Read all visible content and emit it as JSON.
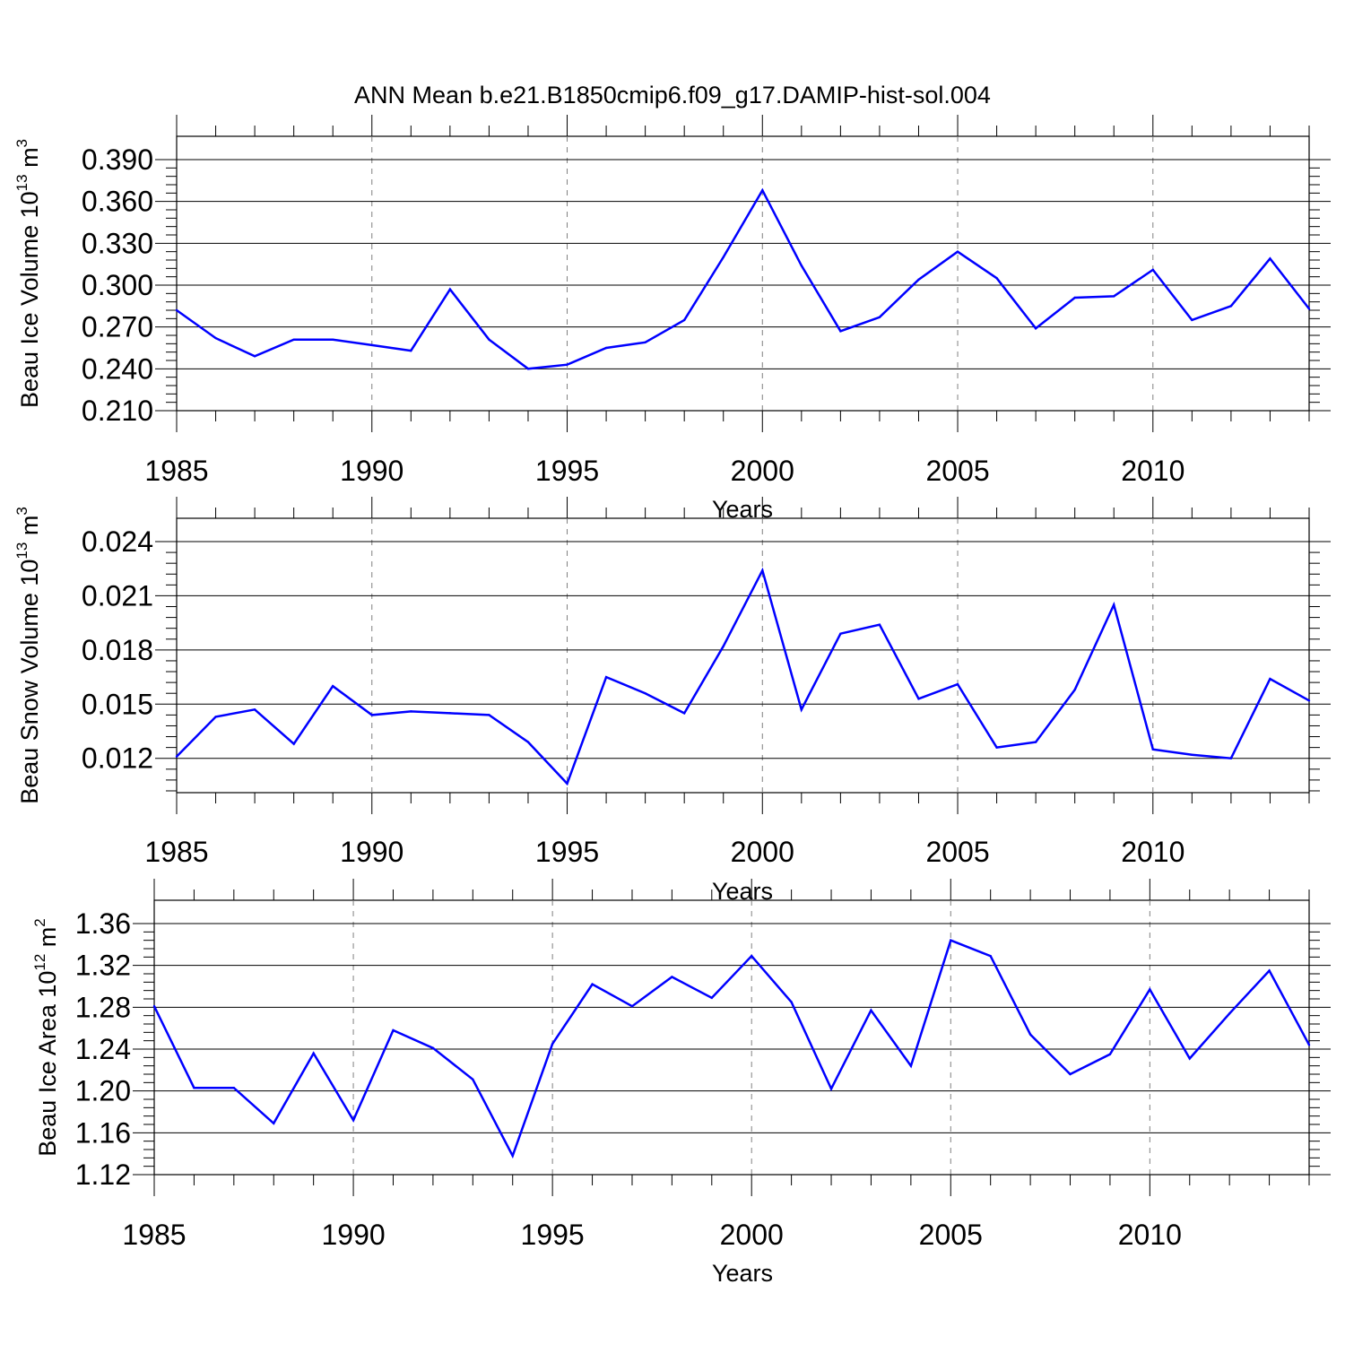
{
  "title": "ANN Mean b.e21.B1850cmip6.f09_g17.DAMIP-hist-sol.004",
  "colors": {
    "series": "#0000ff",
    "axis": "#000000",
    "grid": "#808080",
    "background": "#ffffff"
  },
  "chart_data": [
    {
      "type": "line",
      "ylabel": {
        "text": "Beau Ice Volume 10",
        "exp": "13",
        "unit_text": " m",
        "unit_exp": "3"
      },
      "xlabel": "Years",
      "xlim": [
        1985,
        2014
      ],
      "ylim": [
        0.21,
        0.392
      ],
      "yticks": [
        "0.390",
        "0.360",
        "0.330",
        "0.300",
        "0.270",
        "0.240",
        "0.210"
      ],
      "ytick_values": [
        0.39,
        0.36,
        0.33,
        0.3,
        0.27,
        0.24,
        0.21
      ],
      "xticks": [
        "1985",
        "1990",
        "1995",
        "2000",
        "2005",
        "2010"
      ],
      "xtick_values": [
        1985,
        1990,
        1995,
        2000,
        2005,
        2010
      ],
      "grid": "vertical dashed",
      "x": [
        1985,
        1986,
        1987,
        1988,
        1989,
        1990,
        1991,
        1992,
        1993,
        1994,
        1995,
        1996,
        1997,
        1998,
        1999,
        2000,
        2001,
        2002,
        2003,
        2004,
        2005,
        2006,
        2007,
        2008,
        2009,
        2010,
        2011,
        2012,
        2013,
        2014
      ],
      "values": [
        0.282,
        0.262,
        0.249,
        0.261,
        0.261,
        0.257,
        0.253,
        0.297,
        0.261,
        0.24,
        0.243,
        0.255,
        0.259,
        0.275,
        0.32,
        0.368,
        0.314,
        0.267,
        0.277,
        0.304,
        0.324,
        0.305,
        0.269,
        0.291,
        0.292,
        0.311,
        0.275,
        0.285,
        0.319,
        0.283
      ]
    },
    {
      "type": "line",
      "ylabel": {
        "text": "Beau Snow Volume 10",
        "exp": "13",
        "unit_text": " m",
        "unit_exp": "3"
      },
      "xlabel": "Years",
      "xlim": [
        1985,
        2014
      ],
      "ylim": [
        0.0101,
        0.0239
      ],
      "yticks": [
        "0.024",
        "0.021",
        "0.018",
        "0.015",
        "0.012"
      ],
      "ytick_values": [
        0.024,
        0.021,
        0.018,
        0.015,
        0.012
      ],
      "xticks": [
        "1985",
        "1990",
        "1995",
        "2000",
        "2005",
        "2010"
      ],
      "xtick_values": [
        1985,
        1990,
        1995,
        2000,
        2005,
        2010
      ],
      "grid": "vertical dashed",
      "x": [
        1985,
        1986,
        1987,
        1988,
        1989,
        1990,
        1991,
        1992,
        1993,
        1994,
        1995,
        1996,
        1997,
        1998,
        1999,
        2000,
        2001,
        2002,
        2003,
        2004,
        2005,
        2006,
        2007,
        2008,
        2009,
        2010,
        2011,
        2012,
        2013,
        2014
      ],
      "values": [
        0.0121,
        0.0143,
        0.0147,
        0.0128,
        0.016,
        0.0144,
        0.0146,
        0.0145,
        0.0144,
        0.0129,
        0.0106,
        0.0165,
        0.0156,
        0.0145,
        0.0182,
        0.0224,
        0.0147,
        0.0189,
        0.0194,
        0.0153,
        0.0161,
        0.0126,
        0.0129,
        0.0158,
        0.0205,
        0.0125,
        0.0122,
        0.012,
        0.0164,
        0.0152
      ]
    },
    {
      "type": "line",
      "ylabel": {
        "text": "Beau Ice Area 10",
        "exp": "12",
        "unit_text": " m",
        "unit_exp": "2"
      },
      "xlabel": "Years",
      "xlim": [
        1985,
        2014
      ],
      "ylim": [
        1.12,
        1.36
      ],
      "yticks": [
        "1.36",
        "1.32",
        "1.28",
        "1.24",
        "1.20",
        "1.16",
        "1.12"
      ],
      "ytick_values": [
        1.36,
        1.32,
        1.28,
        1.24,
        1.2,
        1.16,
        1.12
      ],
      "xticks": [
        "1985",
        "1990",
        "1995",
        "2000",
        "2005",
        "2010"
      ],
      "xtick_values": [
        1985,
        1990,
        1995,
        2000,
        2005,
        2010
      ],
      "grid": "vertical dashed",
      "x": [
        1985,
        1986,
        1987,
        1988,
        1989,
        1990,
        1991,
        1992,
        1993,
        1994,
        1995,
        1996,
        1997,
        1998,
        1999,
        2000,
        2001,
        2002,
        2003,
        2004,
        2005,
        2006,
        2007,
        2008,
        2009,
        2010,
        2011,
        2012,
        2013,
        2014
      ],
      "values": [
        1.281,
        1.203,
        1.203,
        1.169,
        1.236,
        1.172,
        1.258,
        1.241,
        1.211,
        1.138,
        1.245,
        1.302,
        1.281,
        1.309,
        1.289,
        1.329,
        1.285,
        1.202,
        1.277,
        1.224,
        1.344,
        1.329,
        1.254,
        1.216,
        1.235,
        1.297,
        1.231,
        1.274,
        1.315,
        1.244
      ]
    }
  ]
}
